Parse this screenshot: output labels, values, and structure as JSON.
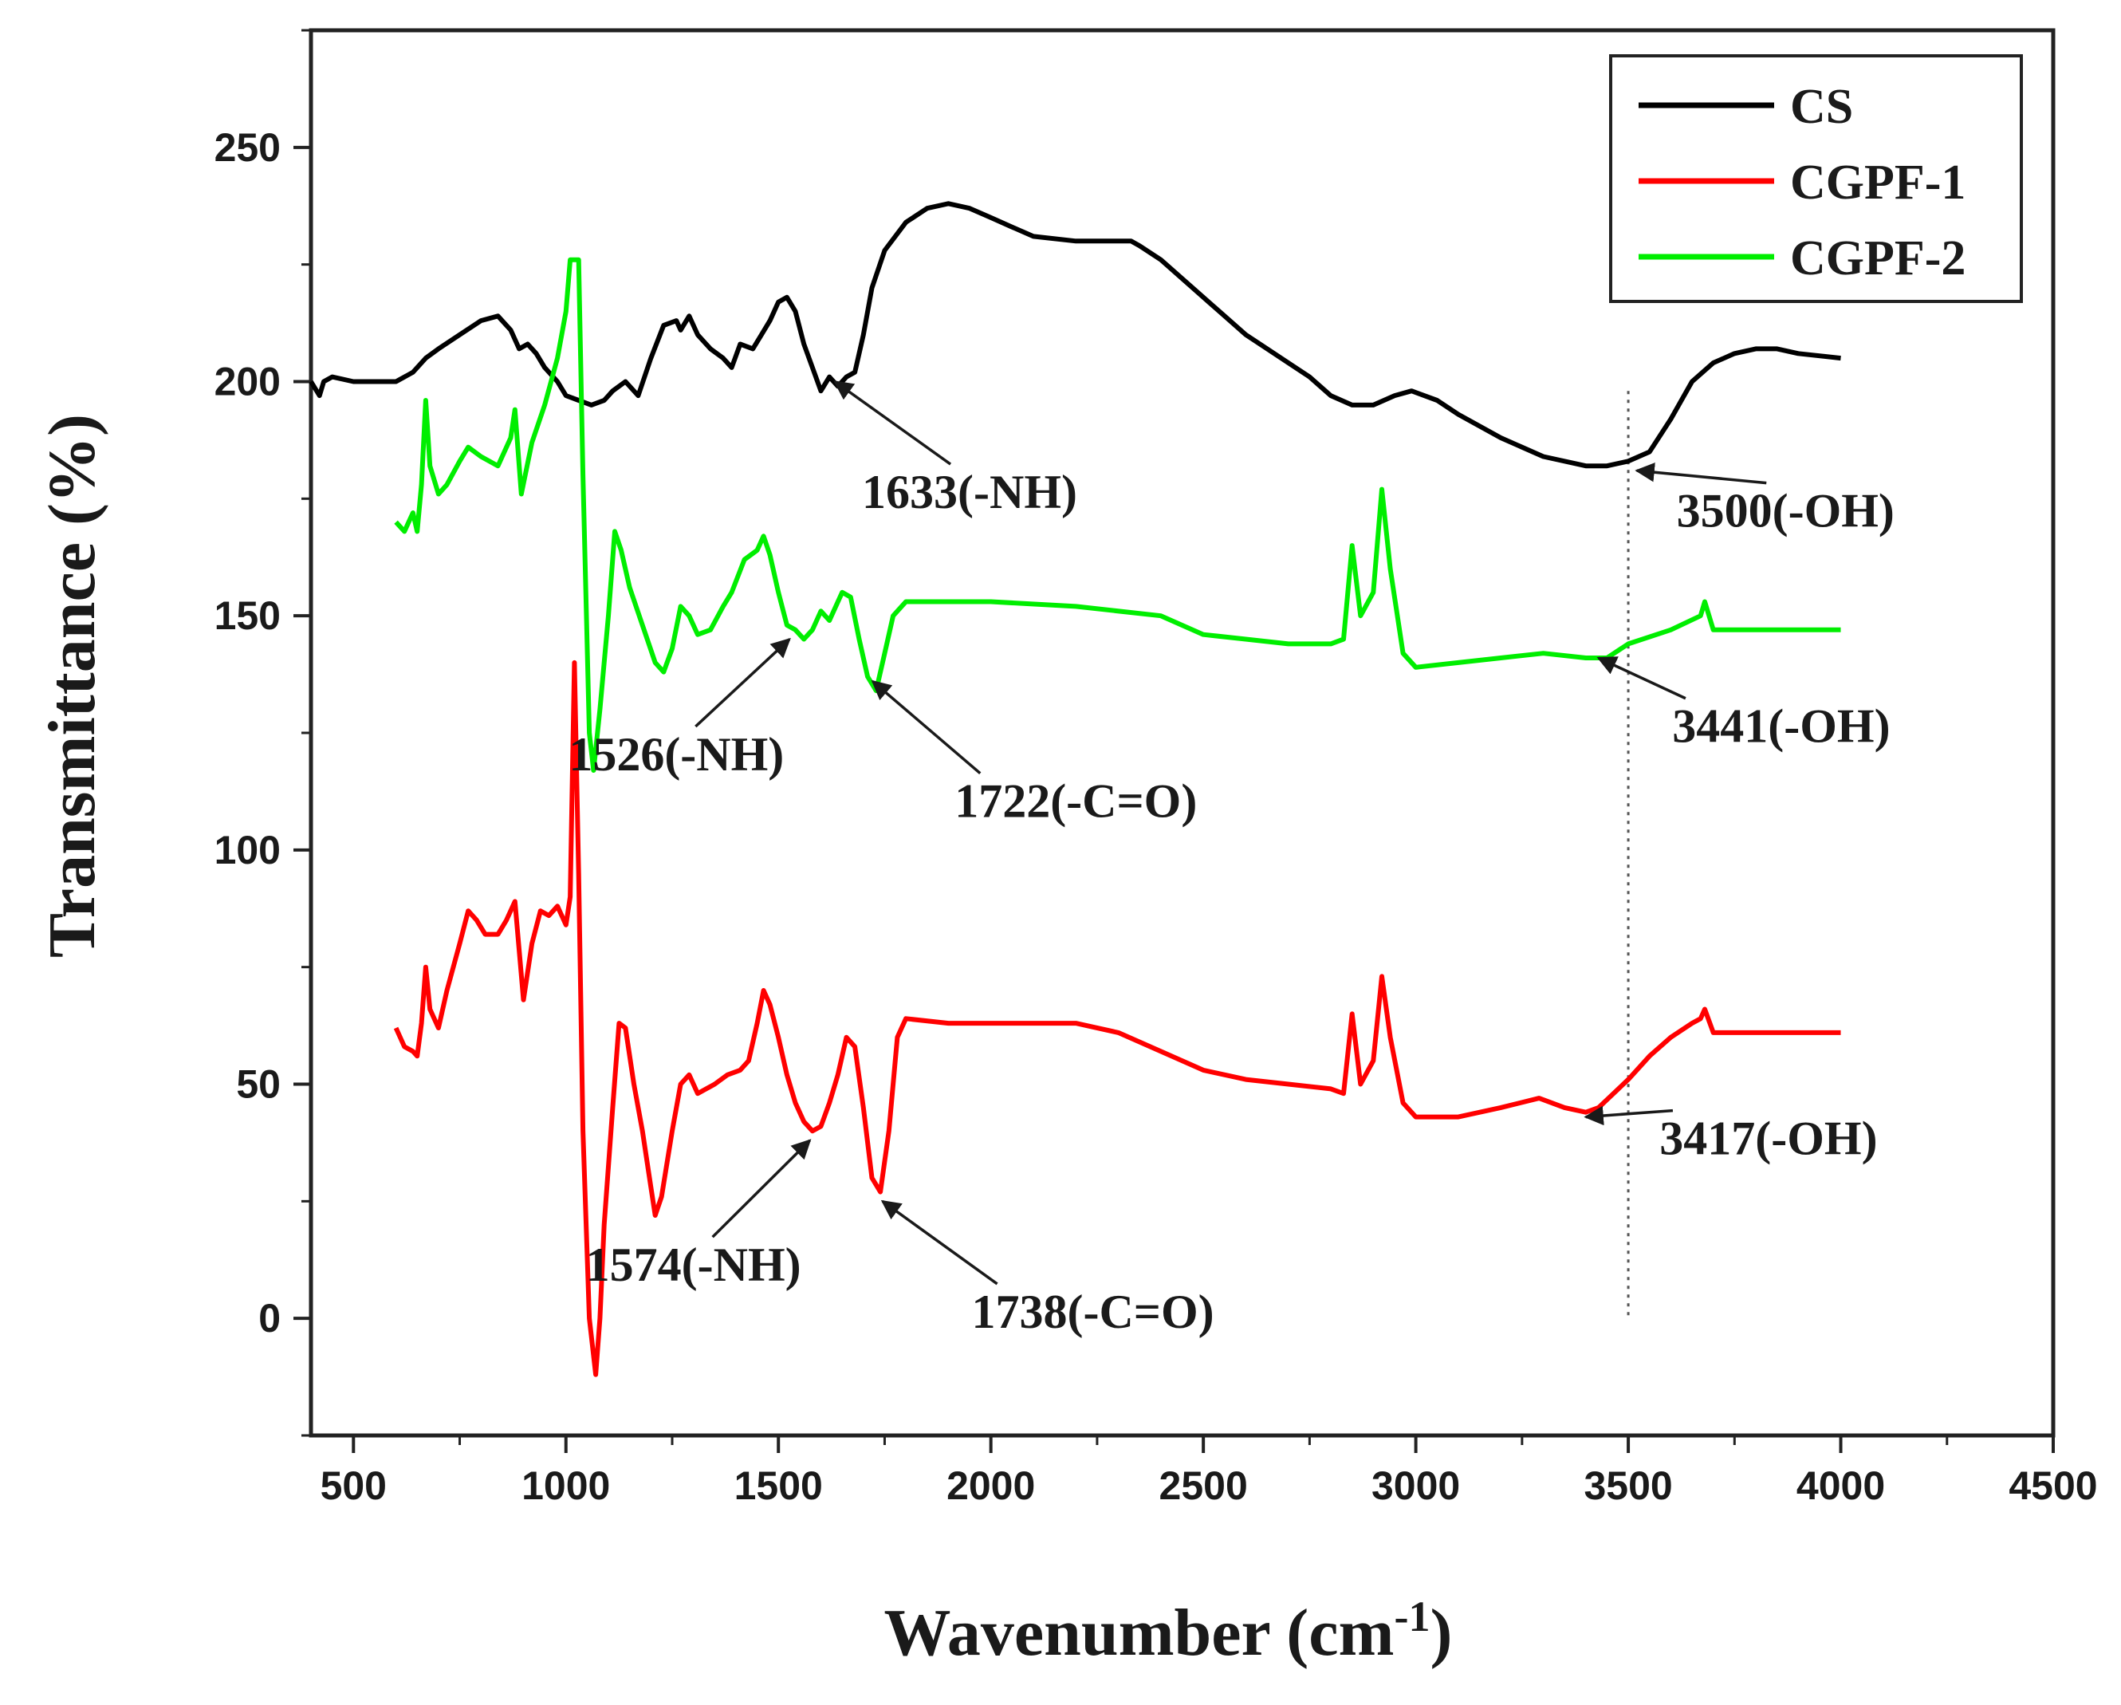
{
  "chart_data": {
    "type": "line",
    "title": "",
    "xlabel": "Wavenumber (cm",
    "xlabel_sup": "-1",
    "xlabel_close": ")",
    "ylabel": "Transmittance (%)",
    "xlim": [
      400,
      4500
    ],
    "ylim": [
      -25,
      275
    ],
    "xticks": [
      500,
      1000,
      1500,
      2000,
      2500,
      3000,
      3500,
      4000,
      4500
    ],
    "yticks": [
      0,
      50,
      100,
      150,
      200,
      250
    ],
    "legend_position": "top-right",
    "series": [
      {
        "name": "CS",
        "color": "#000000",
        "points": [
          [
            400,
            200
          ],
          [
            420,
            197
          ],
          [
            430,
            200
          ],
          [
            450,
            201
          ],
          [
            500,
            200
          ],
          [
            550,
            200
          ],
          [
            600,
            200
          ],
          [
            640,
            202
          ],
          [
            670,
            205
          ],
          [
            700,
            207
          ],
          [
            750,
            210
          ],
          [
            800,
            213
          ],
          [
            840,
            214
          ],
          [
            870,
            211
          ],
          [
            890,
            207
          ],
          [
            910,
            208
          ],
          [
            930,
            206
          ],
          [
            950,
            203
          ],
          [
            980,
            200
          ],
          [
            1000,
            197
          ],
          [
            1030,
            196
          ],
          [
            1060,
            195
          ],
          [
            1090,
            196
          ],
          [
            1110,
            198
          ],
          [
            1140,
            200
          ],
          [
            1170,
            197
          ],
          [
            1200,
            205
          ],
          [
            1230,
            212
          ],
          [
            1260,
            213
          ],
          [
            1270,
            211
          ],
          [
            1290,
            214
          ],
          [
            1310,
            210
          ],
          [
            1340,
            207
          ],
          [
            1370,
            205
          ],
          [
            1390,
            203
          ],
          [
            1410,
            208
          ],
          [
            1440,
            207
          ],
          [
            1460,
            210
          ],
          [
            1480,
            213
          ],
          [
            1500,
            217
          ],
          [
            1520,
            218
          ],
          [
            1540,
            215
          ],
          [
            1560,
            208
          ],
          [
            1580,
            203
          ],
          [
            1600,
            198
          ],
          [
            1620,
            201
          ],
          [
            1640,
            199
          ],
          [
            1660,
            201
          ],
          [
            1680,
            202
          ],
          [
            1700,
            210
          ],
          [
            1720,
            220
          ],
          [
            1750,
            228
          ],
          [
            1800,
            234
          ],
          [
            1850,
            237
          ],
          [
            1900,
            238
          ],
          [
            1950,
            237
          ],
          [
            2000,
            235
          ],
          [
            2050,
            233
          ],
          [
            2100,
            231
          ],
          [
            2200,
            230
          ],
          [
            2300,
            230
          ],
          [
            2330,
            230
          ],
          [
            2350,
            229
          ],
          [
            2400,
            226
          ],
          [
            2450,
            222
          ],
          [
            2500,
            218
          ],
          [
            2550,
            214
          ],
          [
            2600,
            210
          ],
          [
            2650,
            207
          ],
          [
            2700,
            204
          ],
          [
            2750,
            201
          ],
          [
            2800,
            197
          ],
          [
            2850,
            195
          ],
          [
            2900,
            195
          ],
          [
            2950,
            197
          ],
          [
            2990,
            198
          ],
          [
            3050,
            196
          ],
          [
            3100,
            193
          ],
          [
            3200,
            188
          ],
          [
            3300,
            184
          ],
          [
            3400,
            182
          ],
          [
            3450,
            182
          ],
          [
            3500,
            183
          ],
          [
            3550,
            185
          ],
          [
            3600,
            192
          ],
          [
            3650,
            200
          ],
          [
            3700,
            204
          ],
          [
            3750,
            206
          ],
          [
            3800,
            207
          ],
          [
            3850,
            207
          ],
          [
            3900,
            206
          ],
          [
            4000,
            205
          ]
        ]
      },
      {
        "name": "CGPF-1",
        "color": "#ff0000",
        "points": [
          [
            600,
            62
          ],
          [
            620,
            58
          ],
          [
            640,
            57
          ],
          [
            650,
            56
          ],
          [
            660,
            63
          ],
          [
            670,
            75
          ],
          [
            680,
            66
          ],
          [
            700,
            62
          ],
          [
            720,
            70
          ],
          [
            750,
            80
          ],
          [
            770,
            87
          ],
          [
            790,
            85
          ],
          [
            810,
            82
          ],
          [
            840,
            82
          ],
          [
            860,
            85
          ],
          [
            880,
            89
          ],
          [
            900,
            68
          ],
          [
            920,
            80
          ],
          [
            940,
            87
          ],
          [
            960,
            86
          ],
          [
            980,
            88
          ],
          [
            1000,
            84
          ],
          [
            1010,
            90
          ],
          [
            1020,
            140
          ],
          [
            1030,
            95
          ],
          [
            1040,
            40
          ],
          [
            1055,
            0
          ],
          [
            1070,
            -12
          ],
          [
            1080,
            0
          ],
          [
            1090,
            20
          ],
          [
            1110,
            45
          ],
          [
            1125,
            63
          ],
          [
            1140,
            62
          ],
          [
            1160,
            50
          ],
          [
            1180,
            40
          ],
          [
            1200,
            28
          ],
          [
            1210,
            22
          ],
          [
            1225,
            26
          ],
          [
            1250,
            40
          ],
          [
            1270,
            50
          ],
          [
            1290,
            52
          ],
          [
            1310,
            48
          ],
          [
            1330,
            49
          ],
          [
            1350,
            50
          ],
          [
            1380,
            52
          ],
          [
            1410,
            53
          ],
          [
            1430,
            55
          ],
          [
            1450,
            63
          ],
          [
            1465,
            70
          ],
          [
            1480,
            67
          ],
          [
            1500,
            60
          ],
          [
            1520,
            52
          ],
          [
            1540,
            46
          ],
          [
            1560,
            42
          ],
          [
            1580,
            40
          ],
          [
            1600,
            41
          ],
          [
            1620,
            46
          ],
          [
            1640,
            52
          ],
          [
            1660,
            60
          ],
          [
            1680,
            58
          ],
          [
            1700,
            45
          ],
          [
            1720,
            30
          ],
          [
            1740,
            27
          ],
          [
            1760,
            40
          ],
          [
            1780,
            60
          ],
          [
            1800,
            64
          ],
          [
            1900,
            63
          ],
          [
            2000,
            63
          ],
          [
            2100,
            63
          ],
          [
            2200,
            63
          ],
          [
            2300,
            61
          ],
          [
            2400,
            57
          ],
          [
            2500,
            53
          ],
          [
            2600,
            51
          ],
          [
            2700,
            50
          ],
          [
            2800,
            49
          ],
          [
            2830,
            48
          ],
          [
            2850,
            65
          ],
          [
            2870,
            50
          ],
          [
            2900,
            55
          ],
          [
            2920,
            73
          ],
          [
            2940,
            60
          ],
          [
            2970,
            46
          ],
          [
            3000,
            43
          ],
          [
            3100,
            43
          ],
          [
            3200,
            45
          ],
          [
            3290,
            47
          ],
          [
            3350,
            45
          ],
          [
            3400,
            44
          ],
          [
            3430,
            45
          ],
          [
            3500,
            51
          ],
          [
            3550,
            56
          ],
          [
            3600,
            60
          ],
          [
            3650,
            63
          ],
          [
            3670,
            64
          ],
          [
            3680,
            66
          ],
          [
            3700,
            61
          ],
          [
            3800,
            61
          ],
          [
            4000,
            61
          ]
        ]
      },
      {
        "name": "CGPF-2",
        "color": "#00ee00",
        "points": [
          [
            600,
            170
          ],
          [
            620,
            168
          ],
          [
            640,
            172
          ],
          [
            650,
            168
          ],
          [
            660,
            178
          ],
          [
            670,
            196
          ],
          [
            680,
            182
          ],
          [
            700,
            176
          ],
          [
            720,
            178
          ],
          [
            750,
            183
          ],
          [
            770,
            186
          ],
          [
            800,
            184
          ],
          [
            840,
            182
          ],
          [
            870,
            188
          ],
          [
            880,
            194
          ],
          [
            895,
            176
          ],
          [
            920,
            187
          ],
          [
            950,
            195
          ],
          [
            980,
            205
          ],
          [
            1000,
            215
          ],
          [
            1010,
            226
          ],
          [
            1030,
            226
          ],
          [
            1040,
            180
          ],
          [
            1055,
            125
          ],
          [
            1065,
            117
          ],
          [
            1080,
            130
          ],
          [
            1100,
            150
          ],
          [
            1115,
            168
          ],
          [
            1130,
            164
          ],
          [
            1150,
            156
          ],
          [
            1180,
            148
          ],
          [
            1210,
            140
          ],
          [
            1230,
            138
          ],
          [
            1250,
            143
          ],
          [
            1270,
            152
          ],
          [
            1290,
            150
          ],
          [
            1310,
            146
          ],
          [
            1340,
            147
          ],
          [
            1370,
            152
          ],
          [
            1390,
            155
          ],
          [
            1420,
            162
          ],
          [
            1450,
            164
          ],
          [
            1465,
            167
          ],
          [
            1480,
            163
          ],
          [
            1500,
            155
          ],
          [
            1520,
            148
          ],
          [
            1540,
            147
          ],
          [
            1560,
            145
          ],
          [
            1580,
            147
          ],
          [
            1600,
            151
          ],
          [
            1620,
            149
          ],
          [
            1650,
            155
          ],
          [
            1670,
            154
          ],
          [
            1690,
            145
          ],
          [
            1710,
            137
          ],
          [
            1730,
            134
          ],
          [
            1750,
            142
          ],
          [
            1770,
            150
          ],
          [
            1800,
            153
          ],
          [
            2000,
            153
          ],
          [
            2200,
            152
          ],
          [
            2400,
            150
          ],
          [
            2500,
            146
          ],
          [
            2600,
            145
          ],
          [
            2700,
            144
          ],
          [
            2800,
            144
          ],
          [
            2830,
            145
          ],
          [
            2850,
            165
          ],
          [
            2870,
            150
          ],
          [
            2900,
            155
          ],
          [
            2920,
            177
          ],
          [
            2940,
            160
          ],
          [
            2970,
            142
          ],
          [
            3000,
            139
          ],
          [
            3100,
            140
          ],
          [
            3200,
            141
          ],
          [
            3300,
            142
          ],
          [
            3400,
            141
          ],
          [
            3450,
            141
          ],
          [
            3500,
            144
          ],
          [
            3600,
            147
          ],
          [
            3670,
            150
          ],
          [
            3680,
            153
          ],
          [
            3700,
            147
          ],
          [
            3800,
            147
          ],
          [
            4000,
            147
          ]
        ]
      }
    ],
    "annotations": [
      {
        "text": "1633(-NH)",
        "x": 1633,
        "y": 200,
        "label_x": 1950,
        "label_y": 173
      },
      {
        "text": "3500(-OH)",
        "x": 3520,
        "y": 181,
        "label_x": 3870,
        "label_y": 169
      },
      {
        "text": "1526(-NH)",
        "x": 1526,
        "y": 145,
        "label_x": 1260,
        "label_y": 117
      },
      {
        "text": "1722(-C=O)",
        "x": 1722,
        "y": 136,
        "label_x": 2200,
        "label_y": 107
      },
      {
        "text": "3441(-OH)",
        "x": 3430,
        "y": 141,
        "label_x": 3860,
        "label_y": 123
      },
      {
        "text": "1574(-NH)",
        "x": 1574,
        "y": 38,
        "label_x": 1300,
        "label_y": 8
      },
      {
        "text": "1738(-C=O)",
        "x": 1745,
        "y": 25,
        "label_x": 2240,
        "label_y": -2
      },
      {
        "text": "3417(-OH)",
        "x": 3400,
        "y": 43,
        "label_x": 3830,
        "label_y": 35
      }
    ],
    "reference_line": {
      "x": 3500,
      "y_from": 0,
      "y_to": 198,
      "style": "dotted"
    }
  }
}
